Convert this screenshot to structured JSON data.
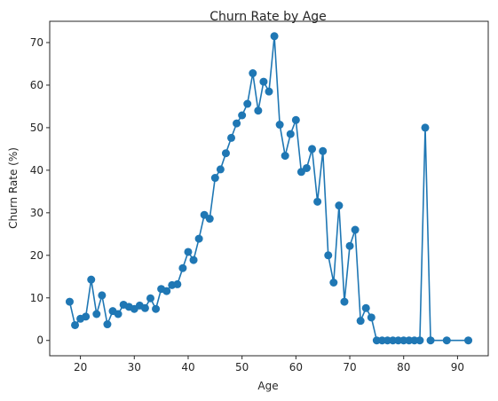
{
  "chart_data": {
    "type": "line",
    "title": "Churn Rate by Age",
    "xlabel": "Age",
    "ylabel": "Churn Rate (%)",
    "xlim": [
      14.3,
      95.7
    ],
    "ylim": [
      -3.6,
      75.0
    ],
    "x_ticks": [
      20,
      30,
      40,
      50,
      60,
      70,
      80,
      90
    ],
    "y_ticks": [
      0,
      10,
      20,
      30,
      40,
      50,
      60,
      70
    ],
    "grid": false,
    "markers": true,
    "series": [
      {
        "color": "#1f77b4",
        "x": [
          18,
          19,
          20,
          21,
          22,
          23,
          24,
          25,
          26,
          27,
          28,
          29,
          30,
          31,
          32,
          33,
          34,
          35,
          36,
          37,
          38,
          39,
          40,
          41,
          42,
          43,
          44,
          45,
          46,
          47,
          48,
          49,
          50,
          51,
          52,
          53,
          54,
          55,
          56,
          57,
          58,
          59,
          60,
          61,
          62,
          63,
          64,
          65,
          66,
          67,
          68,
          69,
          70,
          71,
          72,
          73,
          74,
          75,
          76,
          77,
          78,
          79,
          80,
          81,
          82,
          83,
          84,
          85,
          88,
          92
        ],
        "y": [
          9.1,
          3.6,
          5.1,
          5.6,
          14.3,
          6.2,
          10.6,
          3.8,
          6.9,
          6.2,
          8.4,
          7.9,
          7.4,
          8.2,
          7.6,
          9.9,
          7.4,
          12.1,
          11.6,
          13.0,
          13.2,
          17.0,
          20.8,
          18.9,
          23.9,
          29.5,
          28.6,
          38.2,
          40.2,
          44.0,
          47.6,
          51.0,
          52.9,
          55.6,
          62.8,
          54.0,
          60.8,
          58.5,
          71.5,
          50.7,
          43.4,
          48.5,
          51.8,
          39.6,
          40.5,
          45.0,
          32.6,
          44.5,
          20.0,
          13.6,
          31.7,
          9.1,
          22.2,
          26.0,
          4.6,
          7.6,
          5.4,
          0,
          0,
          0,
          0,
          0,
          0,
          0,
          0,
          0,
          50.0,
          0,
          0,
          0
        ]
      }
    ]
  }
}
